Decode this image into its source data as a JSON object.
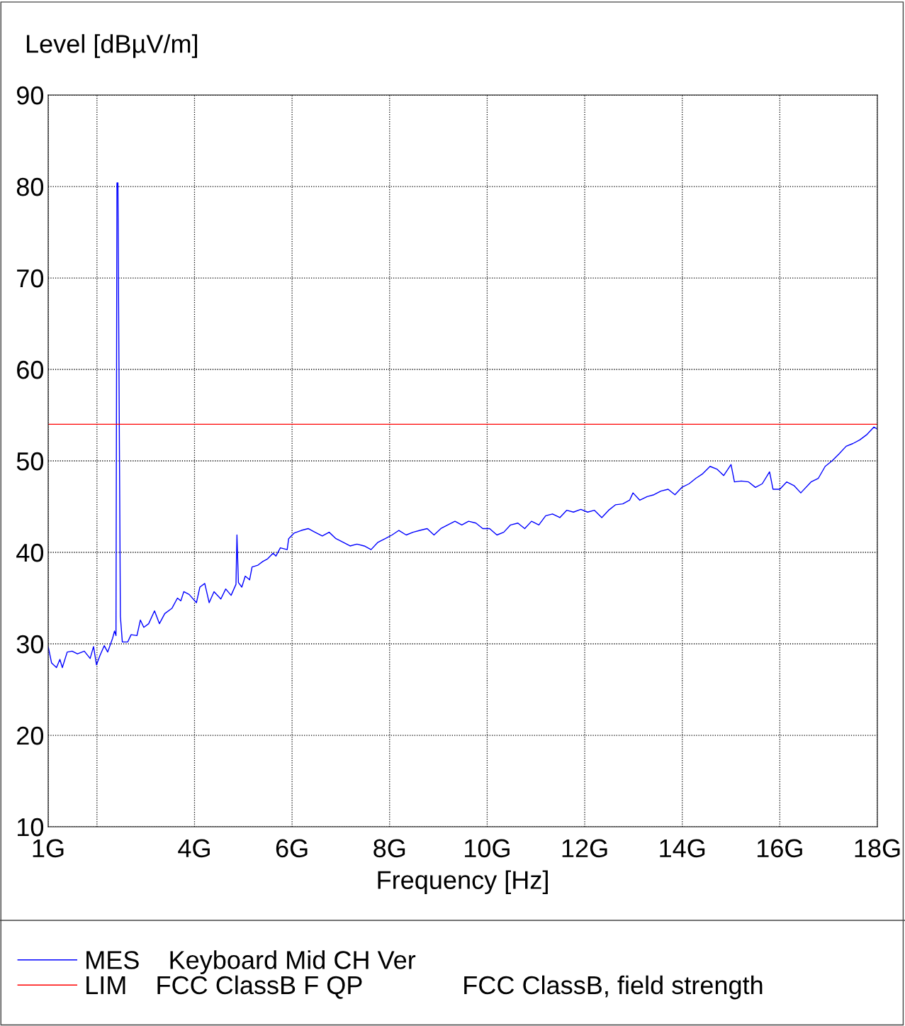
{
  "chart_data": {
    "type": "line",
    "xlabel": "Frequency [Hz]",
    "ylabel": "Level [dBµV/m]",
    "xlim": [
      1,
      18
    ],
    "ylim": [
      10,
      90
    ],
    "xticks": [
      {
        "value": 1,
        "label": "1G"
      },
      {
        "value": 2,
        "label": null
      },
      {
        "value": 4,
        "label": "4G"
      },
      {
        "value": 6,
        "label": "6G"
      },
      {
        "value": 8,
        "label": "8G"
      },
      {
        "value": 10,
        "label": "10G"
      },
      {
        "value": 12,
        "label": "12G"
      },
      {
        "value": 14,
        "label": "14G"
      },
      {
        "value": 16,
        "label": "16G"
      },
      {
        "value": 18,
        "label": "18G"
      }
    ],
    "yticks": [
      10,
      20,
      30,
      40,
      50,
      60,
      70,
      80,
      90
    ],
    "grid": true,
    "legend": "bottom",
    "marker": "none",
    "line_style": "solid",
    "series": [
      {
        "name": "MES    Keyboard Mid CH Ver",
        "color": "#0000ff",
        "x": [
          1.0,
          1.07,
          1.17,
          1.24,
          1.29,
          1.39,
          1.49,
          1.6,
          1.74,
          1.86,
          1.93,
          1.99,
          2.06,
          2.15,
          2.22,
          2.32,
          2.36,
          2.39,
          2.41,
          2.43,
          2.48,
          2.52,
          2.63,
          2.7,
          2.82,
          2.89,
          2.96,
          3.06,
          3.18,
          3.28,
          3.39,
          3.54,
          3.65,
          3.72,
          3.78,
          3.89,
          4.04,
          4.11,
          4.21,
          4.3,
          4.4,
          4.54,
          4.64,
          4.75,
          4.85,
          4.87,
          4.9,
          4.97,
          5.04,
          5.13,
          5.18,
          5.3,
          5.4,
          5.5,
          5.61,
          5.67,
          5.76,
          5.9,
          5.93,
          6.04,
          6.19,
          6.33,
          6.47,
          6.62,
          6.76,
          6.9,
          7.05,
          7.19,
          7.33,
          7.48,
          7.62,
          7.76,
          7.91,
          8.05,
          8.19,
          8.34,
          8.48,
          8.62,
          8.77,
          8.91,
          9.05,
          9.19,
          9.34,
          9.48,
          9.62,
          9.77,
          9.91,
          10.05,
          10.2,
          10.34,
          10.48,
          10.63,
          10.77,
          10.91,
          11.06,
          11.2,
          11.34,
          11.49,
          11.63,
          11.77,
          11.92,
          12.06,
          12.2,
          12.35,
          12.49,
          12.63,
          12.78,
          12.92,
          12.99,
          13.13,
          13.28,
          13.42,
          13.56,
          13.71,
          13.85,
          13.99,
          14.14,
          14.28,
          14.42,
          14.57,
          14.71,
          14.85,
          15.0,
          15.07,
          15.21,
          15.36,
          15.5,
          15.64,
          15.79,
          15.86,
          16.0,
          16.14,
          16.29,
          16.43,
          16.64,
          16.79,
          16.93,
          17.07,
          17.22,
          17.36,
          17.5,
          17.64,
          17.79,
          17.93,
          17.99
        ],
        "values": [
          29.7,
          27.9,
          27.4,
          28.3,
          27.4,
          29.1,
          29.2,
          28.9,
          29.2,
          28.4,
          29.7,
          27.7,
          28.7,
          29.8,
          29.1,
          30.6,
          31.4,
          30.9,
          80.4,
          80.4,
          33.0,
          30.2,
          30.2,
          31.0,
          30.9,
          32.6,
          31.8,
          32.2,
          33.6,
          32.2,
          33.3,
          33.9,
          35.0,
          34.7,
          35.7,
          35.4,
          34.5,
          36.2,
          36.6,
          34.5,
          35.7,
          34.9,
          36.0,
          35.3,
          36.5,
          41.9,
          36.7,
          36.2,
          37.4,
          37.0,
          38.4,
          38.6,
          39.0,
          39.3,
          39.9,
          39.6,
          40.5,
          40.3,
          41.5,
          42.1,
          42.4,
          42.6,
          42.2,
          41.8,
          42.2,
          41.5,
          41.1,
          40.7,
          40.9,
          40.7,
          40.3,
          41.1,
          41.5,
          41.9,
          42.4,
          41.9,
          42.2,
          42.4,
          42.6,
          41.9,
          42.6,
          43.0,
          43.4,
          43.0,
          43.4,
          43.2,
          42.6,
          42.6,
          41.9,
          42.2,
          43.0,
          43.2,
          42.6,
          43.4,
          43.0,
          44.0,
          44.2,
          43.8,
          44.6,
          44.4,
          44.7,
          44.4,
          44.6,
          43.8,
          44.6,
          45.2,
          45.3,
          45.7,
          46.5,
          45.7,
          46.1,
          46.3,
          46.7,
          46.9,
          46.3,
          47.1,
          47.5,
          48.1,
          48.6,
          49.4,
          49.1,
          48.4,
          49.6,
          47.7,
          47.8,
          47.7,
          47.1,
          47.5,
          48.8,
          46.9,
          46.9,
          47.7,
          47.3,
          46.5,
          47.7,
          48.1,
          49.4,
          50.0,
          50.8,
          51.6,
          51.9,
          52.3,
          52.9,
          53.7,
          53.5
        ]
      },
      {
        "name": "LIM    FCC ClassB F QP              FCC ClassB, field strength",
        "color": "#ff0000",
        "x": [
          1,
          18
        ],
        "values": [
          54,
          54
        ]
      }
    ]
  }
}
